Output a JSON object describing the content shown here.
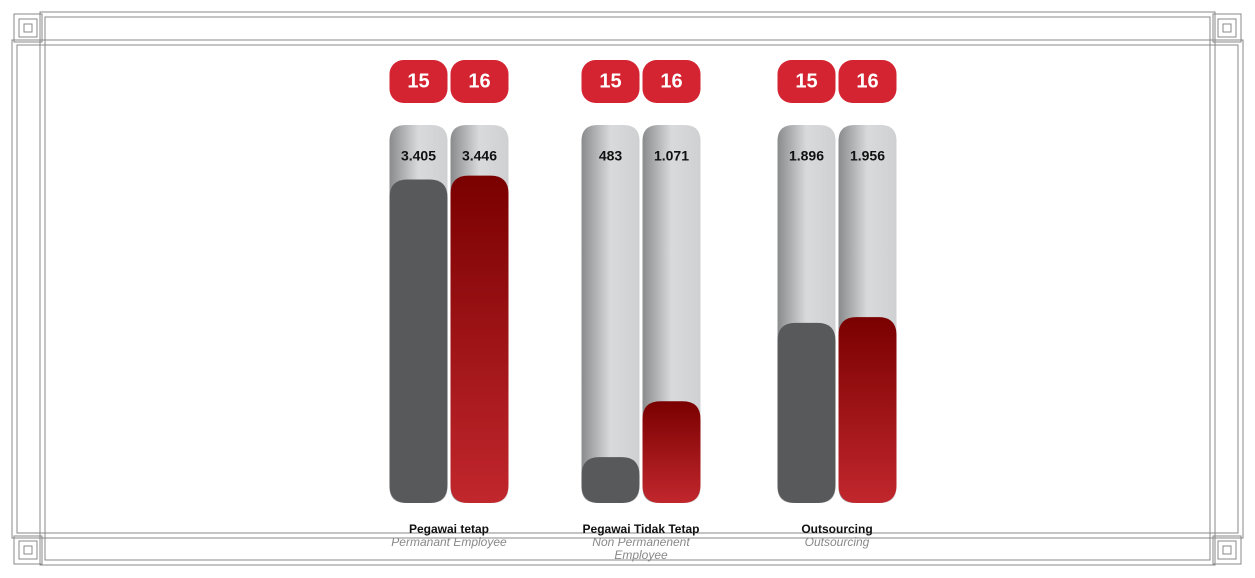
{
  "chart_data": {
    "type": "bar",
    "categories": [
      "Pegawai tetap",
      "Pegawai Tidak Tetap",
      "Outsourcing"
    ],
    "category_subtitles": [
      "Permanant Employee",
      "Non Permanenent Employee",
      "Outsourcing"
    ],
    "series": [
      {
        "name": "15",
        "color": "#58595b",
        "values": [
          3405,
          483,
          1896
        ],
        "value_labels": [
          "3.405",
          "483",
          "1.896"
        ]
      },
      {
        "name": "16",
        "color": "#b3212c",
        "values": [
          3446,
          1071,
          1956
        ],
        "value_labels": [
          "3.446",
          "1.071",
          "1.956"
        ]
      }
    ]
  }
}
